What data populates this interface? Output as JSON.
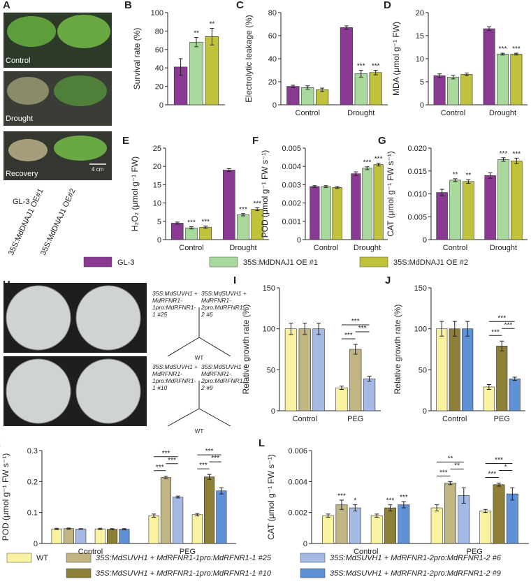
{
  "panel_a": {
    "panel": "A",
    "conditions": [
      "Control",
      "Drought",
      "Recovery"
    ],
    "scale_bar": "4 cm",
    "genotypes": [
      "GL-3",
      "35S:MdDNAJ1 OE#1",
      "35S:MdDNAJ1 OE#2"
    ]
  },
  "legend_top": [
    {
      "name": "GL-3",
      "color": "#8b3a94"
    },
    {
      "name": "35S:MdDNAJ1 OE #1",
      "color": "#a9d99c"
    },
    {
      "name": "35S:MdDNAJ1 OE #2",
      "color": "#c1c23b"
    }
  ],
  "panel_h": {
    "panel": "H",
    "plates": [
      {
        "labels": [
          "35S:MdSUVH1 + MdRFNR1-1pro:MdRFNR1-1 #25",
          "35S:MdSUVH1 + MdRFNR1-2pro:MdRFNR1-2 #6",
          "WT"
        ]
      },
      {
        "labels": [
          "35S:MdSUVH1 + MdRFNR1-1pro:MdRFNR1-1 #10",
          "35S:MdSUVH1 + MdRFNR1-2pro:MdRFNR1-2 #9",
          "WT"
        ]
      }
    ]
  },
  "legend_bottom": [
    {
      "name": "WT",
      "color": "#f9f3a1"
    },
    {
      "name": "35S:MdSUVH1 + MdRFNR1-1pro:MdRFNR1-1 #25",
      "color": "#c1b584"
    },
    {
      "name": "35S:MdSUVH1 + MdRFNR1-1pro:MdRFNR1-1 #10",
      "color": "#8e8037"
    },
    {
      "name": "35S:MdSUVH1 + MdRFNR1-2pro:MdRFNR1-2 #6",
      "color": "#a4b9e4"
    },
    {
      "name": "35S:MdSUVH1 + MdRFNR1-2pro:MdRFNR1-2 #9",
      "color": "#5e91d6"
    }
  ],
  "chart_data": [
    {
      "type": "bar",
      "panel": "B",
      "ylabel": "Survival rate (%)",
      "ylim": [
        0,
        100
      ],
      "yticks": [
        0,
        20,
        40,
        60,
        80,
        100
      ],
      "series": [
        {
          "color": "#8b3a94",
          "values": [
            41
          ],
          "errors": [
            9
          ],
          "stars": [
            null
          ]
        },
        {
          "color": "#a9d99c",
          "values": [
            68
          ],
          "errors": [
            5
          ],
          "stars": [
            "**"
          ]
        },
        {
          "color": "#c1c23b",
          "values": [
            74
          ],
          "errors": [
            9
          ],
          "stars": [
            "**"
          ]
        }
      ]
    },
    {
      "type": "bar",
      "panel": "C",
      "ylabel": "Electrolytic leakage (%)",
      "ylim": [
        0,
        80
      ],
      "yticks": [
        0,
        20,
        40,
        60,
        80
      ],
      "categories": [
        "Control",
        "Drought"
      ],
      "series": [
        {
          "color": "#8b3a94",
          "values": [
            16,
            67
          ],
          "errors": [
            1,
            1.5
          ],
          "stars": [
            null,
            null
          ]
        },
        {
          "color": "#a9d99c",
          "values": [
            15,
            27
          ],
          "errors": [
            1.5,
            3
          ],
          "stars": [
            null,
            "***"
          ]
        },
        {
          "color": "#c1c23b",
          "values": [
            13,
            28
          ],
          "errors": [
            1.5,
            2
          ],
          "stars": [
            null,
            "***"
          ]
        }
      ]
    },
    {
      "type": "bar",
      "panel": "D",
      "ylabel": "MDA (μmol g⁻¹ FW)",
      "ylim": [
        0,
        20
      ],
      "yticks": [
        0,
        5,
        10,
        15,
        20
      ],
      "categories": [
        "Control",
        "Drought"
      ],
      "series": [
        {
          "color": "#8b3a94",
          "values": [
            6.3,
            16.5
          ],
          "errors": [
            0.4,
            0.4
          ],
          "stars": [
            null,
            null
          ]
        },
        {
          "color": "#a9d99c",
          "values": [
            6.0,
            11.0
          ],
          "errors": [
            0.4,
            0.2
          ],
          "stars": [
            null,
            "***"
          ]
        },
        {
          "color": "#c1c23b",
          "values": [
            6.6,
            11.0
          ],
          "errors": [
            0.3,
            0.2
          ],
          "stars": [
            null,
            "***"
          ]
        }
      ]
    },
    {
      "type": "bar",
      "panel": "E",
      "ylabel": "H₂O₂ (μmol g⁻¹ FW)",
      "ylim": [
        0,
        25
      ],
      "yticks": [
        0,
        5,
        10,
        15,
        20,
        25
      ],
      "categories": [
        "Control",
        "Drought"
      ],
      "series": [
        {
          "color": "#8b3a94",
          "values": [
            4.5,
            19
          ],
          "errors": [
            0.3,
            0.4
          ],
          "stars": [
            null,
            null
          ]
        },
        {
          "color": "#a9d99c",
          "values": [
            3.2,
            6.8
          ],
          "errors": [
            0.3,
            0.3
          ],
          "stars": [
            "***",
            "***"
          ]
        },
        {
          "color": "#c1c23b",
          "values": [
            3.4,
            8.3
          ],
          "errors": [
            0.3,
            0.4
          ],
          "stars": [
            "***",
            "***"
          ]
        }
      ]
    },
    {
      "type": "bar",
      "panel": "F",
      "ylabel": "POD (μmol g⁻¹ FW s⁻¹)",
      "ylim": [
        0,
        0.005
      ],
      "yticks": [
        0,
        0.001,
        0.002,
        0.003,
        0.004,
        0.005
      ],
      "categories": [
        "Control",
        "Drought"
      ],
      "series": [
        {
          "color": "#8b3a94",
          "values": [
            0.0029,
            0.0036
          ],
          "errors": [
            5e-05,
            0.0001
          ],
          "stars": [
            null,
            null
          ]
        },
        {
          "color": "#a9d99c",
          "values": [
            0.0029,
            0.0039
          ],
          "errors": [
            5e-05,
            8e-05
          ],
          "stars": [
            null,
            "***"
          ]
        },
        {
          "color": "#c1c23b",
          "values": [
            0.00285,
            0.0041
          ],
          "errors": [
            5e-05,
            8e-05
          ],
          "stars": [
            null,
            "***"
          ]
        }
      ]
    },
    {
      "type": "bar",
      "panel": "G",
      "ylabel": "CAT (μmol g⁻¹ FW s⁻¹)",
      "ylim": [
        0,
        0.02
      ],
      "yticks": [
        0,
        0.005,
        {
          "value": 0.01,
          "label": "0.010"
        },
        0.015,
        {
          "value": 0.02,
          "label": "0.020"
        }
      ],
      "categories": [
        "Control",
        "Drought"
      ],
      "series": [
        {
          "color": "#8b3a94",
          "values": [
            0.0103,
            0.014
          ],
          "errors": [
            0.0007,
            0.0006
          ],
          "stars": [
            null,
            null
          ]
        },
        {
          "color": "#a9d99c",
          "values": [
            0.013,
            0.0175
          ],
          "errors": [
            0.0003,
            0.0004
          ],
          "stars": [
            "**",
            "***"
          ]
        },
        {
          "color": "#c1c23b",
          "values": [
            0.0127,
            0.0172
          ],
          "errors": [
            0.0004,
            0.0006
          ],
          "stars": [
            "**",
            "***"
          ]
        }
      ]
    },
    {
      "type": "bar",
      "panel": "I",
      "ylabel": "Relative growth rate (%)",
      "ylim": [
        0,
        150
      ],
      "yticks": [
        0,
        50,
        100,
        150
      ],
      "categories": [
        "Control",
        "PEG"
      ],
      "brackets": [
        null,
        [
          [
            "***",
            "***",
            "***"
          ]
        ]
      ],
      "series": [
        {
          "color": "#f9f3a1",
          "values": [
            100,
            28
          ],
          "errors": [
            7,
            2
          ],
          "stars": [
            null,
            null
          ]
        },
        {
          "color": "#c1b584",
          "values": [
            100,
            75
          ],
          "errors": [
            7,
            6
          ],
          "stars": [
            null,
            null
          ]
        },
        {
          "color": "#a4b9e4",
          "values": [
            100,
            39
          ],
          "errors": [
            7,
            3
          ],
          "stars": [
            null,
            null
          ]
        }
      ]
    },
    {
      "type": "bar",
      "panel": "J",
      "ylabel": "Relative growth rate (%)",
      "ylim": [
        0,
        150
      ],
      "yticks": [
        0,
        50,
        100,
        150
      ],
      "categories": [
        "Control",
        "PEG"
      ],
      "brackets": [
        null,
        [
          [
            "***",
            "***",
            "***"
          ]
        ]
      ],
      "series": [
        {
          "color": "#f9f3a1",
          "values": [
            100,
            29
          ],
          "errors": [
            9,
            3
          ],
          "stars": [
            null,
            null
          ]
        },
        {
          "color": "#8e8037",
          "values": [
            100,
            79
          ],
          "errors": [
            9,
            6
          ],
          "stars": [
            null,
            null
          ]
        },
        {
          "color": "#5e91d6",
          "values": [
            100,
            39
          ],
          "errors": [
            9,
            2
          ],
          "stars": [
            null,
            null
          ]
        }
      ]
    },
    {
      "type": "bar",
      "panel": "K",
      "ylabel": "POD (μmol g⁻¹ FW s⁻¹)",
      "ylim": [
        0,
        0.3
      ],
      "yticks": [
        0,
        0.1,
        0.2,
        0.3
      ],
      "categories": [
        "Control",
        "PEG"
      ],
      "brackets": [
        null,
        [
          [
            "***",
            "***",
            "***"
          ],
          [
            "***",
            "***",
            "***"
          ]
        ]
      ],
      "series": [
        {
          "color": "#f9f3a1",
          "values": [
            0.047,
            0.09
          ],
          "errors": [
            0.002,
            0.005
          ],
          "stars": [
            null,
            null
          ]
        },
        {
          "color": "#c1b584",
          "values": [
            0.048,
            0.213
          ],
          "errors": [
            0.002,
            0.004
          ],
          "stars": [
            null,
            null
          ]
        },
        {
          "color": "#a4b9e4",
          "values": [
            0.047,
            0.15
          ],
          "errors": [
            0.001,
            0.003
          ],
          "stars": [
            null,
            null
          ]
        },
        {
          "color": "#f9f3a1",
          "values": [
            0.047,
            0.093
          ],
          "errors": [
            0.002,
            0.004
          ],
          "stars": [
            null,
            null
          ]
        },
        {
          "color": "#8e8037",
          "values": [
            0.046,
            0.215
          ],
          "errors": [
            0.002,
            0.008
          ],
          "stars": [
            null,
            null
          ]
        },
        {
          "color": "#5e91d6",
          "values": [
            0.046,
            0.17
          ],
          "errors": [
            0.002,
            0.01
          ],
          "stars": [
            null,
            null
          ]
        }
      ]
    },
    {
      "type": "bar",
      "panel": "L",
      "ylabel": "CAT (μmol g⁻¹ FW s⁻¹)",
      "ylim": [
        0,
        0.006
      ],
      "yticks": [
        0,
        0.002,
        0.004,
        0.006
      ],
      "categories": [
        "Control",
        "PEG"
      ],
      "brackets": [
        null,
        [
          [
            "**",
            "**",
            "***"
          ],
          [
            "***",
            "*",
            "***"
          ]
        ]
      ],
      "series": [
        {
          "color": "#f9f3a1",
          "values": [
            0.0018,
            0.0023
          ],
          "errors": [
            0.0001,
            0.0002
          ],
          "stars": [
            null,
            null
          ]
        },
        {
          "color": "#c1b584",
          "values": [
            0.0025,
            0.0039
          ],
          "errors": [
            0.0003,
            0.0001
          ],
          "stars": [
            "***",
            null
          ]
        },
        {
          "color": "#a4b9e4",
          "values": [
            0.0023,
            0.0031
          ],
          "errors": [
            0.0002,
            0.0005
          ],
          "stars": [
            "*",
            null
          ]
        },
        {
          "color": "#f9f3a1",
          "values": [
            0.0018,
            0.0021
          ],
          "errors": [
            0.0001,
            0.0001
          ],
          "stars": [
            null,
            null
          ]
        },
        {
          "color": "#8e8037",
          "values": [
            0.0023,
            0.0038
          ],
          "errors": [
            0.0002,
            0.0001
          ],
          "stars": [
            "***",
            null
          ]
        },
        {
          "color": "#5e91d6",
          "values": [
            0.0025,
            0.0032
          ],
          "errors": [
            0.0002,
            0.0004
          ],
          "stars": [
            "***",
            null
          ]
        }
      ]
    }
  ]
}
